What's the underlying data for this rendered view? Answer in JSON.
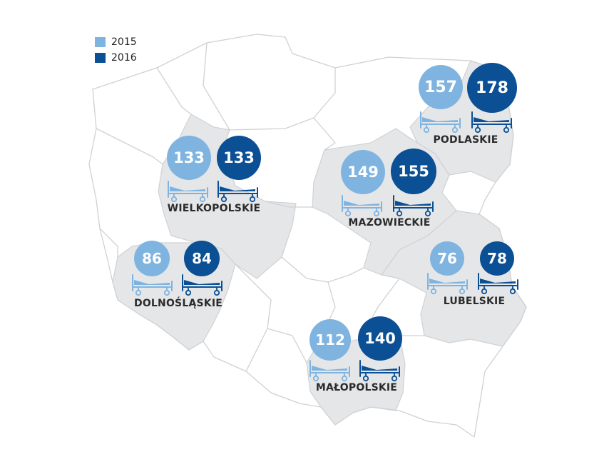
{
  "legend": [
    {
      "label": "2015",
      "color": "#7fb4e0"
    },
    {
      "label": "2016",
      "color": "#0b4f94"
    }
  ],
  "colors": {
    "light": "#7fb4e0",
    "dark": "#0b4f94",
    "highlight": "#e5e6e8",
    "border": "#cfd1d4"
  },
  "regions": [
    {
      "name": "PODLASKIE",
      "v2015": "157",
      "v2016": "178"
    },
    {
      "name": "WIELKOPOLSKIE",
      "v2015": "133",
      "v2016": "133"
    },
    {
      "name": "MAZOWIECKIE",
      "v2015": "149",
      "v2016": "155"
    },
    {
      "name": "DOLNOŚLĄSKIE",
      "v2015": "86",
      "v2016": "84"
    },
    {
      "name": "LUBELSKIE",
      "v2015": "76",
      "v2016": "78"
    },
    {
      "name": "MAŁOPOLSKIE",
      "v2015": "112",
      "v2016": "140"
    }
  ]
}
